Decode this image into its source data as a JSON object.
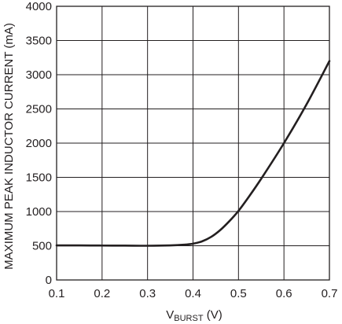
{
  "chart_data": {
    "type": "line",
    "title": "",
    "ylabel": "MAXIMUM PEAK INDUCTOR CURRENT (mA)",
    "xlabel": {
      "main": "V",
      "subscript": "BURST",
      "unit": " (V)"
    },
    "xlim": [
      0.1,
      0.7
    ],
    "ylim": [
      0,
      4000
    ],
    "xticks": [
      "0.1",
      "0.2",
      "0.3",
      "0.4",
      "0.5",
      "0.6",
      "0.7"
    ],
    "yticks": [
      "0",
      "500",
      "1000",
      "1500",
      "2000",
      "2500",
      "3000",
      "3500",
      "4000"
    ],
    "grid": true,
    "legend": "none",
    "colors": {
      "line": "#231f20",
      "grid": "#231f20"
    },
    "series": [
      {
        "x": [
          0.1,
          0.15,
          0.2,
          0.25,
          0.3,
          0.35,
          0.38,
          0.4,
          0.42,
          0.44,
          0.46,
          0.48,
          0.5,
          0.52,
          0.55,
          0.6,
          0.65,
          0.7
        ],
        "y": [
          505,
          505,
          503,
          502,
          500,
          505,
          515,
          530,
          565,
          630,
          730,
          860,
          1010,
          1190,
          1480,
          2000,
          2570,
          3200
        ]
      }
    ]
  }
}
